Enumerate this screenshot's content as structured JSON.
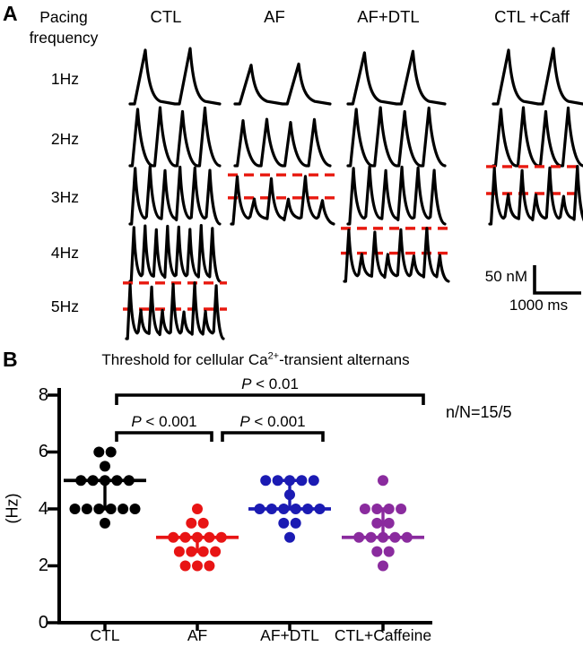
{
  "panel_a": {
    "label": "A",
    "row_header_line1": "Pacing",
    "row_header_line2": "frequency",
    "columns": [
      "CTL",
      "AF",
      "AF+DTL",
      "CTL +Caff"
    ],
    "rows": [
      "1Hz",
      "2Hz",
      "3Hz",
      "4Hz",
      "5Hz"
    ],
    "trace_color": "#000000",
    "alternans_line_color": "#e8190f",
    "traces": [
      {
        "col": "CTL",
        "row": "1Hz",
        "peaks": 2,
        "kind": "regular",
        "amp": 1
      },
      {
        "col": "CTL",
        "row": "2Hz",
        "peaks": 4,
        "kind": "regular",
        "amp": 1
      },
      {
        "col": "CTL",
        "row": "3Hz",
        "peaks": 6,
        "kind": "regular",
        "amp": 1
      },
      {
        "col": "CTL",
        "row": "4Hz",
        "peaks": 8,
        "kind": "regular",
        "amp": 1
      },
      {
        "col": "CTL",
        "row": "5Hz",
        "peaks": 9,
        "kind": "alternans",
        "amp": 1
      },
      {
        "col": "AF",
        "row": "1Hz",
        "peaks": 2,
        "kind": "regular",
        "amp": 0.72
      },
      {
        "col": "AF",
        "row": "2Hz",
        "peaks": 4,
        "kind": "regular",
        "amp": 0.8
      },
      {
        "col": "AF",
        "row": "3Hz",
        "peaks": 6,
        "kind": "alternans",
        "amp": 0.85
      },
      {
        "col": "AF+DTL",
        "row": "1Hz",
        "peaks": 2,
        "kind": "regular",
        "amp": 0.95
      },
      {
        "col": "AF+DTL",
        "row": "2Hz",
        "peaks": 4,
        "kind": "regular",
        "amp": 1
      },
      {
        "col": "AF+DTL",
        "row": "3Hz",
        "peaks": 6,
        "kind": "regular",
        "amp": 1
      },
      {
        "col": "AF+DTL",
        "row": "4Hz",
        "peaks": 8,
        "kind": "alternans",
        "amp": 0.95
      },
      {
        "col": "CTL +Caff",
        "row": "1Hz",
        "peaks": 2,
        "kind": "regular",
        "amp": 1
      },
      {
        "col": "CTL +Caff",
        "row": "2Hz",
        "peaks": 4,
        "kind": "regular",
        "amp": 1
      },
      {
        "col": "CTL +Caff",
        "row": "3Hz",
        "peaks": 7,
        "kind": "alternans",
        "amp": 1
      }
    ],
    "scale_bar": {
      "amplitude_label": "50 nM",
      "time_label": "1000 ms"
    }
  },
  "panel_b": {
    "label": "B",
    "title_pre": "Threshold for cellular  Ca",
    "title_sup": "2+",
    "title_post": "-transient alternans",
    "annotation": "n/N=15/5",
    "ylabel": "(Hz)",
    "significance": [
      {
        "p_italic": "P",
        "p_rest": " < 0.01",
        "from": "CTL",
        "to": "CTL+Caffeine"
      },
      {
        "p_italic": "P",
        "p_rest": " < 0.001",
        "from": "CTL",
        "to": "AF"
      },
      {
        "p_italic": "P",
        "p_rest": " < 0.001",
        "from": "AF",
        "to": "AF+DTL"
      }
    ],
    "chart_data": {
      "type": "scatter",
      "title": "Threshold for cellular Ca2+-transient alternans",
      "xlabel": "",
      "ylabel": "(Hz)",
      "ylim": [
        0,
        8
      ],
      "yticks": [
        0,
        2,
        4,
        6,
        8
      ],
      "grid": false,
      "legend": false,
      "categories": [
        "CTL",
        "AF",
        "AF+DTL",
        "CTL+Caffeine"
      ],
      "series": [
        {
          "name": "CTL",
          "color": "#000000",
          "mean": 5,
          "whisker_to": 4,
          "values": [
            6,
            6,
            5.5,
            5,
            5,
            5,
            5,
            5,
            4,
            4,
            4,
            4,
            4,
            4,
            3.5
          ]
        },
        {
          "name": "AF",
          "color": "#e81414",
          "mean": 3,
          "whisker_to": 2.5,
          "values": [
            4,
            3.5,
            3.5,
            3,
            3,
            3,
            3,
            3,
            2.5,
            2.5,
            2.5,
            2.5,
            2,
            2,
            2
          ]
        },
        {
          "name": "AF+DTL",
          "color": "#1b1bb3",
          "mean": 4,
          "whisker_to": 5,
          "values": [
            5,
            5,
            5,
            5,
            5,
            4.5,
            4,
            4,
            4,
            4,
            4,
            4,
            3.5,
            3.5,
            3
          ]
        },
        {
          "name": "CTL+Caffeine",
          "color": "#8a2b9e",
          "mean": 3,
          "whisker_to": 4,
          "values": [
            5,
            4,
            4,
            4,
            4,
            3.5,
            3.5,
            3,
            3,
            3,
            3,
            3,
            2.5,
            2.5,
            2
          ]
        }
      ]
    }
  }
}
